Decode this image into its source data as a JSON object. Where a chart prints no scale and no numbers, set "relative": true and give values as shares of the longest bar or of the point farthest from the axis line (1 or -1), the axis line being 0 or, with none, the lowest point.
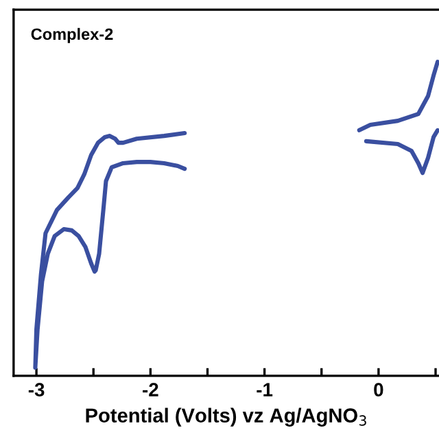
{
  "chart_data": {
    "type": "line",
    "relative": true,
    "xlabel": "Potential (Volts) vz Ag/AgNO$_{3}$",
    "annotations": [
      "Complex-2"
    ],
    "xlim": [
      -3.2,
      0.53
    ],
    "xticks": [
      -3,
      {
        "value": -2.5,
        "label": null
      },
      -2,
      {
        "value": -1.5,
        "label": null
      },
      -1,
      {
        "value": -0.5,
        "label": null
      },
      0,
      {
        "value": 0.5,
        "label": null
      }
    ],
    "grid": false,
    "legend": false,
    "marker": "none",
    "line_style": "solid",
    "tick_labels": "x",
    "series": [
      {
        "color": "#3a4fa0",
        "x": [
          -1.7,
          -1.88,
          -2.12,
          -2.24,
          -2.28,
          -2.31,
          -2.36,
          -2.4,
          -2.46,
          -2.52,
          -2.58,
          -2.64,
          -2.72,
          -2.82,
          -2.92,
          -2.96,
          -3.0,
          -3.01,
          -2.99,
          -2.95,
          -2.9,
          -2.84,
          -2.76,
          -2.69,
          -2.63,
          -2.57,
          -2.52,
          -2.49,
          -2.48,
          -2.45,
          -2.41,
          -2.39,
          -2.34,
          -2.24,
          -2.12,
          -2.0,
          -1.88,
          -1.76,
          -1.7
        ],
        "values": [
          0.773,
          0.764,
          0.755,
          0.742,
          0.742,
          0.755,
          0.764,
          0.76,
          0.742,
          0.703,
          0.642,
          0.598,
          0.568,
          0.528,
          0.454,
          0.323,
          0.148,
          0.026,
          0.148,
          0.301,
          0.389,
          0.445,
          0.467,
          0.463,
          0.445,
          0.41,
          0.358,
          0.332,
          0.336,
          0.389,
          0.541,
          0.62,
          0.664,
          0.677,
          0.681,
          0.681,
          0.677,
          0.668,
          0.659
        ]
      },
      {
        "color": "#3a4fa0",
        "x": [
          -0.169,
          -0.072,
          0.169,
          0.349,
          0.434,
          0.482,
          0.518
        ],
        "values": [
          0.782,
          0.799,
          0.812,
          0.834,
          0.891,
          0.956,
          1.0
        ]
      },
      {
        "color": "#3a4fa0",
        "x": [
          -0.108,
          0.169,
          0.289,
          0.349,
          0.386,
          0.434,
          0.482,
          0.518
        ],
        "values": [
          0.747,
          0.738,
          0.716,
          0.677,
          0.646,
          0.694,
          0.76,
          0.782
        ]
      }
    ]
  }
}
